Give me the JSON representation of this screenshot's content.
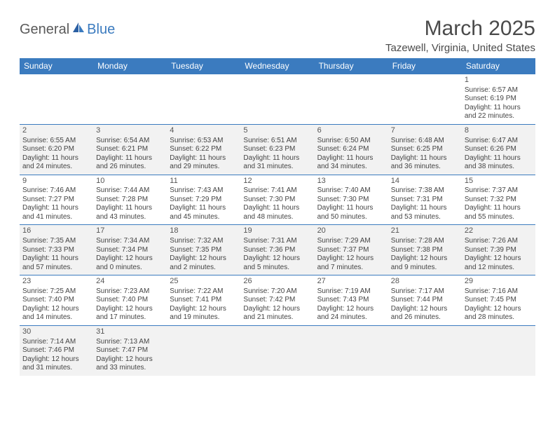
{
  "logo": {
    "general": "General",
    "blue": "Blue"
  },
  "title": "March 2025",
  "location": "Tazewell, Virginia, United States",
  "day_headers": [
    "Sunday",
    "Monday",
    "Tuesday",
    "Wednesday",
    "Thursday",
    "Friday",
    "Saturday"
  ],
  "colors": {
    "header_bg": "#3b7bbf",
    "header_text": "#ffffff",
    "alt_cell_bg": "#f2f2f2",
    "text": "#444444",
    "border": "#3b7bbf"
  },
  "typography": {
    "title_fontsize": 30,
    "location_fontsize": 15,
    "header_fontsize": 12,
    "cell_fontsize": 10
  },
  "weeks": [
    [
      null,
      null,
      null,
      null,
      null,
      null,
      {
        "n": "1",
        "sr": "Sunrise: 6:57 AM",
        "ss": "Sunset: 6:19 PM",
        "dl": "Daylight: 11 hours and 22 minutes."
      }
    ],
    [
      {
        "n": "2",
        "sr": "Sunrise: 6:55 AM",
        "ss": "Sunset: 6:20 PM",
        "dl": "Daylight: 11 hours and 24 minutes."
      },
      {
        "n": "3",
        "sr": "Sunrise: 6:54 AM",
        "ss": "Sunset: 6:21 PM",
        "dl": "Daylight: 11 hours and 26 minutes."
      },
      {
        "n": "4",
        "sr": "Sunrise: 6:53 AM",
        "ss": "Sunset: 6:22 PM",
        "dl": "Daylight: 11 hours and 29 minutes."
      },
      {
        "n": "5",
        "sr": "Sunrise: 6:51 AM",
        "ss": "Sunset: 6:23 PM",
        "dl": "Daylight: 11 hours and 31 minutes."
      },
      {
        "n": "6",
        "sr": "Sunrise: 6:50 AM",
        "ss": "Sunset: 6:24 PM",
        "dl": "Daylight: 11 hours and 34 minutes."
      },
      {
        "n": "7",
        "sr": "Sunrise: 6:48 AM",
        "ss": "Sunset: 6:25 PM",
        "dl": "Daylight: 11 hours and 36 minutes."
      },
      {
        "n": "8",
        "sr": "Sunrise: 6:47 AM",
        "ss": "Sunset: 6:26 PM",
        "dl": "Daylight: 11 hours and 38 minutes."
      }
    ],
    [
      {
        "n": "9",
        "sr": "Sunrise: 7:46 AM",
        "ss": "Sunset: 7:27 PM",
        "dl": "Daylight: 11 hours and 41 minutes."
      },
      {
        "n": "10",
        "sr": "Sunrise: 7:44 AM",
        "ss": "Sunset: 7:28 PM",
        "dl": "Daylight: 11 hours and 43 minutes."
      },
      {
        "n": "11",
        "sr": "Sunrise: 7:43 AM",
        "ss": "Sunset: 7:29 PM",
        "dl": "Daylight: 11 hours and 45 minutes."
      },
      {
        "n": "12",
        "sr": "Sunrise: 7:41 AM",
        "ss": "Sunset: 7:30 PM",
        "dl": "Daylight: 11 hours and 48 minutes."
      },
      {
        "n": "13",
        "sr": "Sunrise: 7:40 AM",
        "ss": "Sunset: 7:30 PM",
        "dl": "Daylight: 11 hours and 50 minutes."
      },
      {
        "n": "14",
        "sr": "Sunrise: 7:38 AM",
        "ss": "Sunset: 7:31 PM",
        "dl": "Daylight: 11 hours and 53 minutes."
      },
      {
        "n": "15",
        "sr": "Sunrise: 7:37 AM",
        "ss": "Sunset: 7:32 PM",
        "dl": "Daylight: 11 hours and 55 minutes."
      }
    ],
    [
      {
        "n": "16",
        "sr": "Sunrise: 7:35 AM",
        "ss": "Sunset: 7:33 PM",
        "dl": "Daylight: 11 hours and 57 minutes."
      },
      {
        "n": "17",
        "sr": "Sunrise: 7:34 AM",
        "ss": "Sunset: 7:34 PM",
        "dl": "Daylight: 12 hours and 0 minutes."
      },
      {
        "n": "18",
        "sr": "Sunrise: 7:32 AM",
        "ss": "Sunset: 7:35 PM",
        "dl": "Daylight: 12 hours and 2 minutes."
      },
      {
        "n": "19",
        "sr": "Sunrise: 7:31 AM",
        "ss": "Sunset: 7:36 PM",
        "dl": "Daylight: 12 hours and 5 minutes."
      },
      {
        "n": "20",
        "sr": "Sunrise: 7:29 AM",
        "ss": "Sunset: 7:37 PM",
        "dl": "Daylight: 12 hours and 7 minutes."
      },
      {
        "n": "21",
        "sr": "Sunrise: 7:28 AM",
        "ss": "Sunset: 7:38 PM",
        "dl": "Daylight: 12 hours and 9 minutes."
      },
      {
        "n": "22",
        "sr": "Sunrise: 7:26 AM",
        "ss": "Sunset: 7:39 PM",
        "dl": "Daylight: 12 hours and 12 minutes."
      }
    ],
    [
      {
        "n": "23",
        "sr": "Sunrise: 7:25 AM",
        "ss": "Sunset: 7:40 PM",
        "dl": "Daylight: 12 hours and 14 minutes."
      },
      {
        "n": "24",
        "sr": "Sunrise: 7:23 AM",
        "ss": "Sunset: 7:40 PM",
        "dl": "Daylight: 12 hours and 17 minutes."
      },
      {
        "n": "25",
        "sr": "Sunrise: 7:22 AM",
        "ss": "Sunset: 7:41 PM",
        "dl": "Daylight: 12 hours and 19 minutes."
      },
      {
        "n": "26",
        "sr": "Sunrise: 7:20 AM",
        "ss": "Sunset: 7:42 PM",
        "dl": "Daylight: 12 hours and 21 minutes."
      },
      {
        "n": "27",
        "sr": "Sunrise: 7:19 AM",
        "ss": "Sunset: 7:43 PM",
        "dl": "Daylight: 12 hours and 24 minutes."
      },
      {
        "n": "28",
        "sr": "Sunrise: 7:17 AM",
        "ss": "Sunset: 7:44 PM",
        "dl": "Daylight: 12 hours and 26 minutes."
      },
      {
        "n": "29",
        "sr": "Sunrise: 7:16 AM",
        "ss": "Sunset: 7:45 PM",
        "dl": "Daylight: 12 hours and 28 minutes."
      }
    ],
    [
      {
        "n": "30",
        "sr": "Sunrise: 7:14 AM",
        "ss": "Sunset: 7:46 PM",
        "dl": "Daylight: 12 hours and 31 minutes."
      },
      {
        "n": "31",
        "sr": "Sunrise: 7:13 AM",
        "ss": "Sunset: 7:47 PM",
        "dl": "Daylight: 12 hours and 33 minutes."
      },
      null,
      null,
      null,
      null,
      null
    ]
  ]
}
